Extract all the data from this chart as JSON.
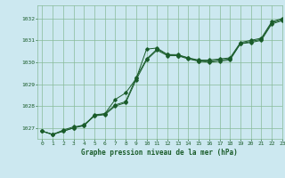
{
  "title": "Graphe pression niveau de la mer (hPa)",
  "background_color": "#cce8f0",
  "grid_color": "#88bb99",
  "line_color": "#1a5c2a",
  "xlim": [
    -0.5,
    23
  ],
  "ylim": [
    1026.5,
    1032.6
  ],
  "yticks": [
    1027,
    1028,
    1029,
    1030,
    1031,
    1032
  ],
  "xticks": [
    0,
    1,
    2,
    3,
    4,
    5,
    6,
    7,
    8,
    9,
    10,
    11,
    12,
    13,
    14,
    15,
    16,
    17,
    18,
    19,
    20,
    21,
    22,
    23
  ],
  "series": [
    [
      1026.85,
      1026.7,
      1026.9,
      1027.05,
      1027.1,
      1027.6,
      1027.65,
      1028.05,
      1028.2,
      1029.3,
      1030.15,
      1030.6,
      1030.35,
      1030.35,
      1030.2,
      1030.1,
      1030.1,
      1030.15,
      1030.2,
      1030.9,
      1031.0,
      1031.1,
      1031.85,
      1032.0
    ],
    [
      1026.85,
      1026.7,
      1026.85,
      1027.0,
      1027.15,
      1027.55,
      1027.65,
      1028.3,
      1028.6,
      1029.25,
      1030.6,
      1030.65,
      1030.35,
      1030.3,
      1030.2,
      1030.05,
      1030.05,
      1030.1,
      1030.15,
      1030.85,
      1030.95,
      1031.05,
      1031.8,
      1031.95
    ],
    [
      1026.85,
      1026.7,
      1026.85,
      1027.0,
      1027.1,
      1027.55,
      1027.6,
      1028.0,
      1028.15,
      1029.2,
      1030.1,
      1030.55,
      1030.3,
      1030.3,
      1030.15,
      1030.05,
      1030.0,
      1030.05,
      1030.1,
      1030.85,
      1030.9,
      1031.0,
      1031.75,
      1031.9
    ]
  ]
}
